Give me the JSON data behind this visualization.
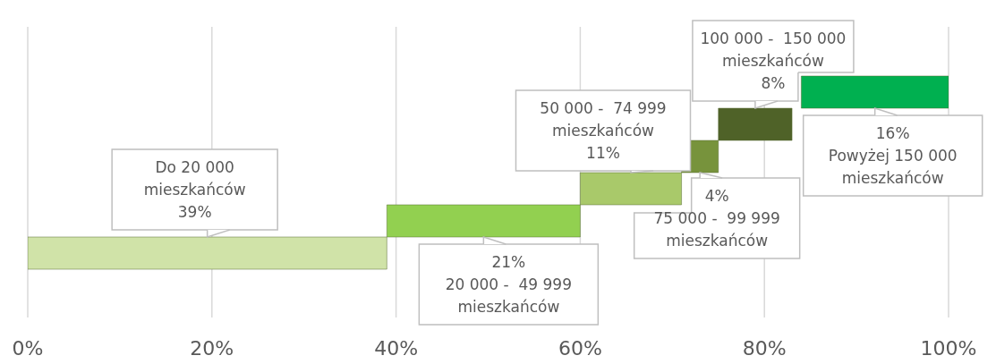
{
  "chart_data": {
    "type": "bar",
    "orientation": "horizontal",
    "categories": [
      null,
      null,
      null,
      null,
      null,
      null
    ],
    "annotations": [
      "Powyżej 150 000 mieszkańców",
      "100 000 -  150 000 mieszkańców",
      "75 000 -  99 999 mieszkańców",
      "50 000 -  74 999 mieszkańców",
      "20 000 -  49 999 mieszkańców",
      "Do 20 000 mieszkańców"
    ],
    "values": [
      16,
      8,
      4,
      11,
      21,
      39
    ],
    "base": [
      84,
      75,
      71,
      60,
      39,
      0
    ],
    "colors": [
      "#00b050",
      "#4f6228",
      "#77933c",
      "#a9c96a",
      "#92d050",
      "#d0e3a8"
    ],
    "value_labels": [
      "16%",
      "8%",
      "4%",
      "11%",
      "21%",
      "39%"
    ],
    "xlim": [
      0,
      100
    ],
    "xticks": [
      {
        "value": 0,
        "label": "0%"
      },
      {
        "value": 20,
        "label": "20%"
      },
      {
        "value": 40,
        "label": "40%"
      },
      {
        "value": 60,
        "label": "60%"
      },
      {
        "value": 80,
        "label": "80%"
      },
      {
        "value": 100,
        "label": "100%"
      }
    ],
    "grid": "x",
    "tick_labels": "x"
  }
}
